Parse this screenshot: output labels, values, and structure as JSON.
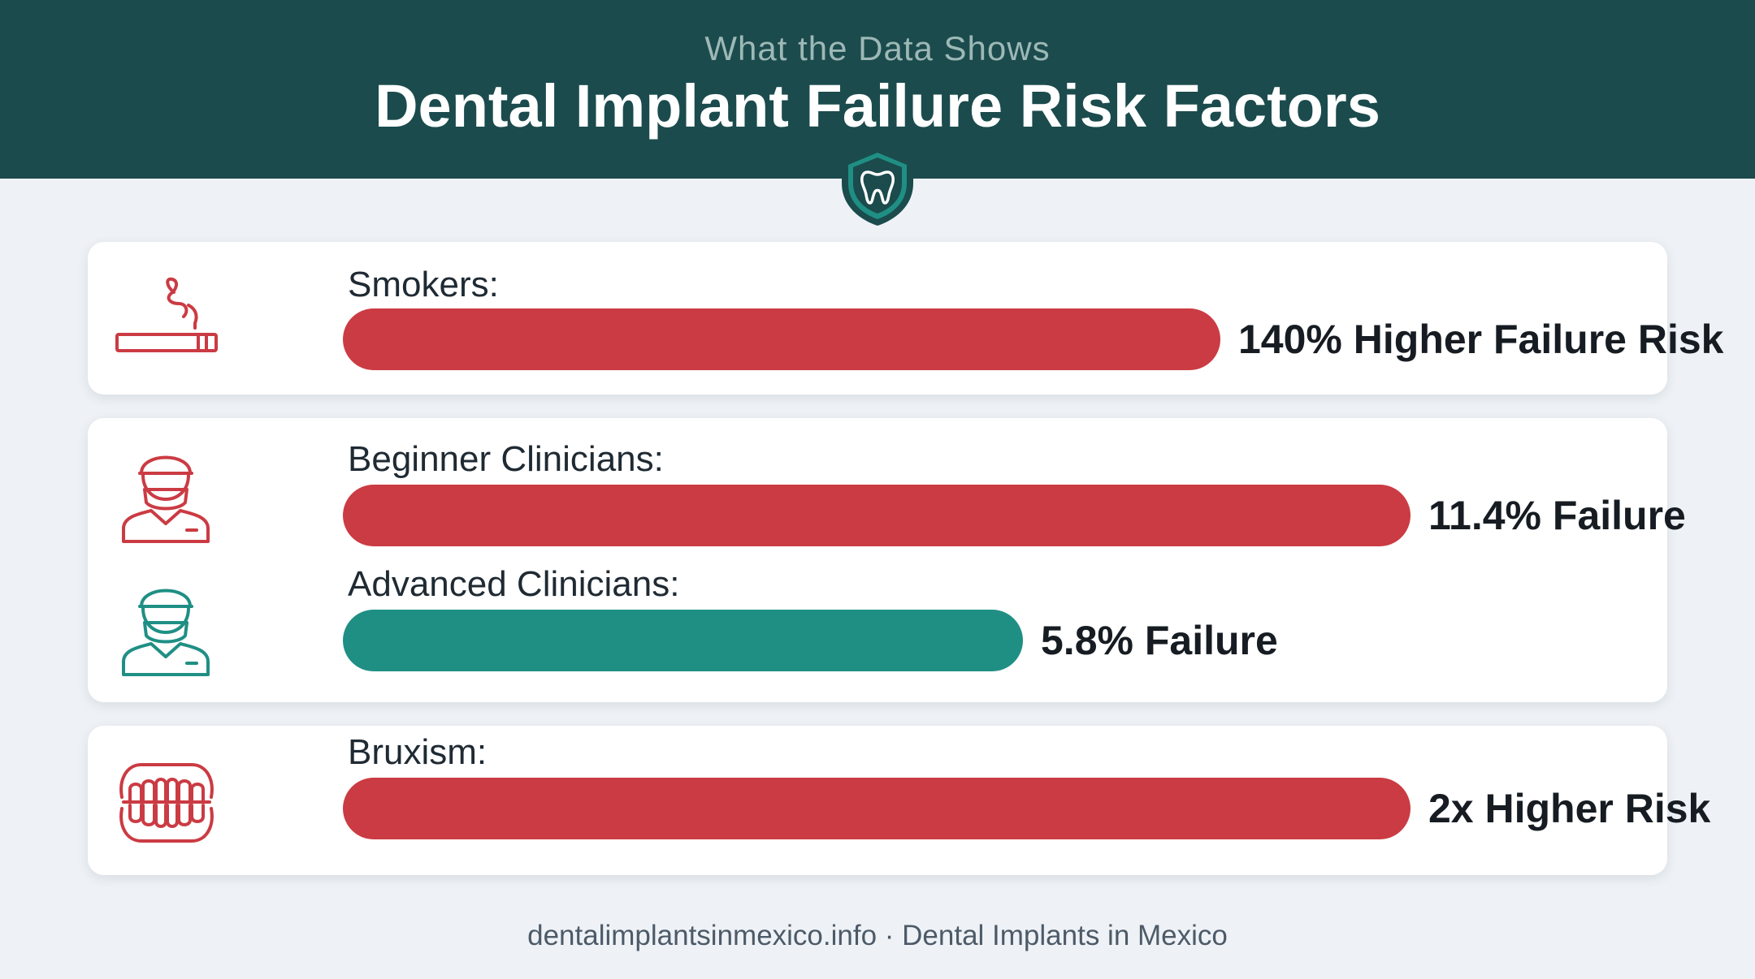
{
  "header": {
    "subtitle": "What the Data Shows",
    "title": "Dental Implant Failure Risk Factors"
  },
  "chart_data": {
    "type": "bar",
    "orientation": "horizontal",
    "categories": [
      "Smokers:",
      "Beginner Clinicians:",
      "Advanced Clinicians:",
      "Bruxism:"
    ],
    "value_labels": [
      "140% Higher Failure Risk",
      "11.4% Failure",
      "5.8% Failure",
      "2x Higher Risk"
    ],
    "relative_length": [
      0.822,
      1.0,
      0.637,
      1.0
    ],
    "series_colors": [
      "#cb3b43",
      "#cb3b43",
      "#1f8f84",
      "#cb3b43"
    ],
    "icons": [
      "cigarette-icon",
      "clinician-icon",
      "clinician-icon",
      "teeth-icon"
    ]
  },
  "footer": {
    "text": "dentalimplantsinmexico.info · Dental Implants in Mexico"
  },
  "colors": {
    "header_bg": "#1b4b4d",
    "risk_red": "#cb3b43",
    "safe_teal": "#1f8f84"
  }
}
